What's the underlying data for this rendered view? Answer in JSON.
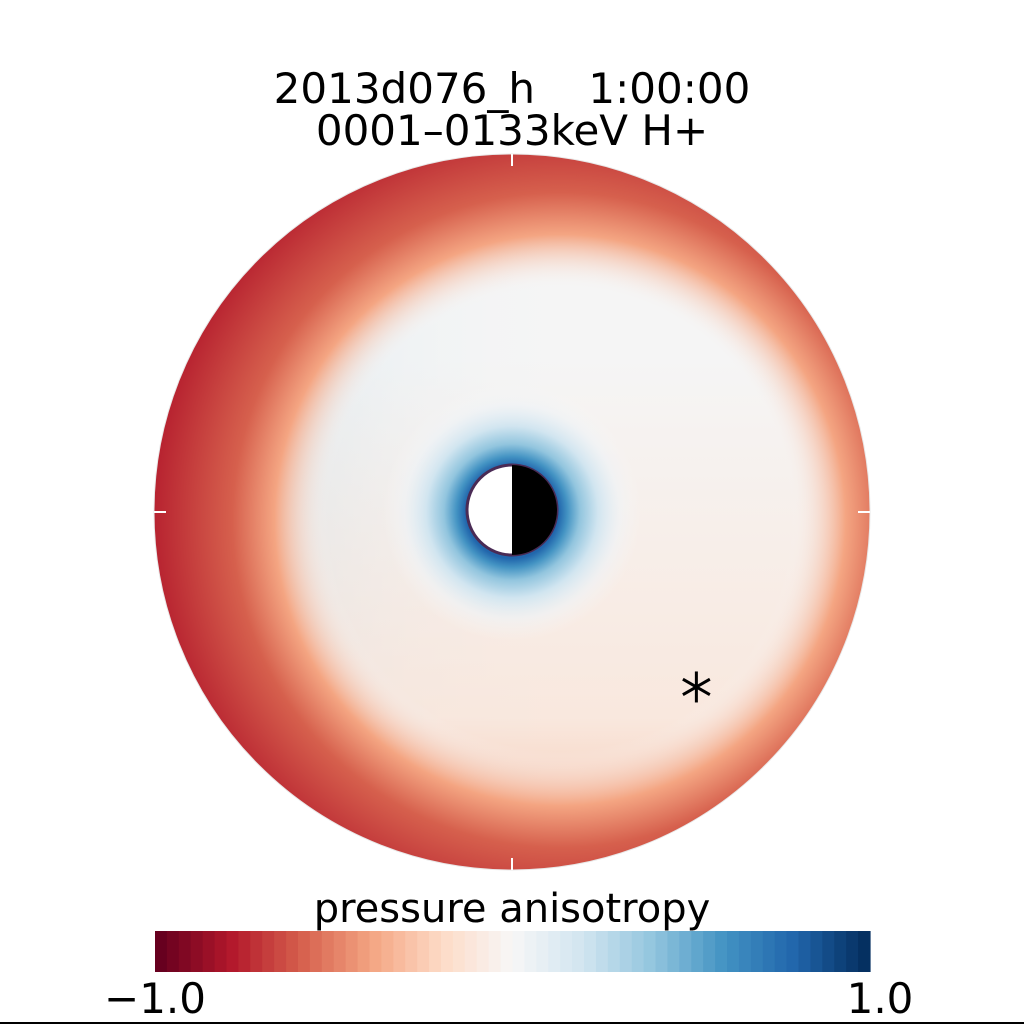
{
  "chart_data": {
    "type": "heatmap",
    "projection": "polar-equatorial",
    "title": "2013d076_h    1:00:00",
    "subtitle": "0001–0133keV H+",
    "colorbar": {
      "label": "pressure anisotropy",
      "min": -1.0,
      "max": 1.0,
      "min_label": "−1.0",
      "max_label": "1.0",
      "levels": 60,
      "colormap": "red-white-blue",
      "stops": [
        "#67001f",
        "#b2182b",
        "#d6604d",
        "#f4a582",
        "#fddbc7",
        "#f7f7f7",
        "#d1e5f0",
        "#92c5de",
        "#4393c3",
        "#2166ac",
        "#053061"
      ]
    },
    "earth": {
      "day_side": "left",
      "day_color": "#ffffff",
      "night_color": "#000000"
    },
    "marker": {
      "symbol": "asterisk",
      "local_time_hours": 21.1
    },
    "field_description": {
      "dusk_outer_zone": "strong negative anisotropy (red)",
      "inner_ring": "positive anisotropy near Earth (blue)",
      "bulk": "near zero (white)"
    }
  }
}
